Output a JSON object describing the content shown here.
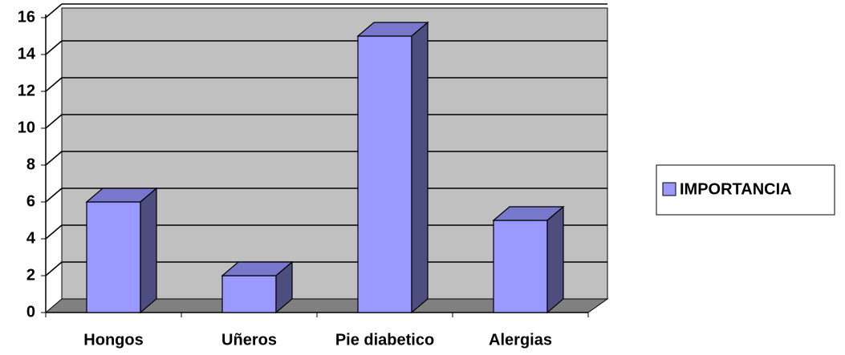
{
  "chart_data": {
    "type": "bar",
    "categories": [
      "Hongos",
      "Uñeros",
      "Pie diabetico",
      "Alergias"
    ],
    "series": [
      {
        "name": "IMPORTANCIA",
        "color": "#9999ff",
        "values": [
          6,
          2,
          15,
          5
        ]
      }
    ],
    "ylim": [
      0,
      16
    ],
    "yticks": [
      0,
      2,
      4,
      6,
      8,
      10,
      12,
      14,
      16
    ],
    "grid": true,
    "legend": "right"
  }
}
